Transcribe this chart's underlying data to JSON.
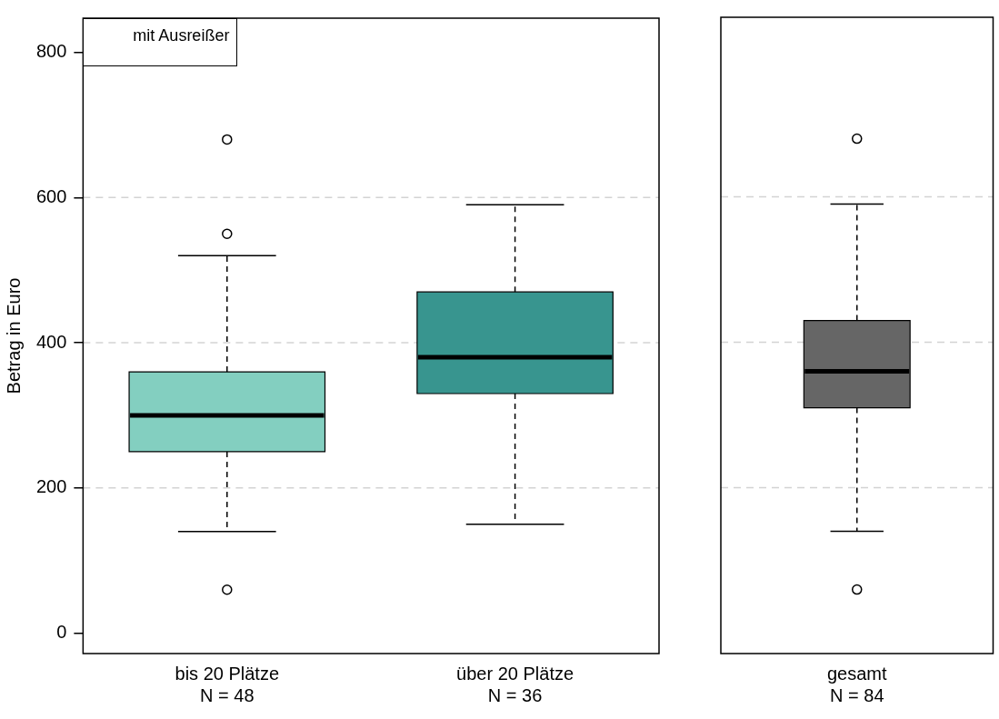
{
  "chart_data": [
    {
      "type": "box",
      "ylabel": "Betrag in Euro",
      "categories": [
        "bis 20 Plätze\nN = 48",
        "über 20 Plätze\nN = 36"
      ],
      "colors": [
        "#83cfc0",
        "#38958f"
      ],
      "boxes": [
        {
          "low": 140,
          "q1": 250,
          "median": 300,
          "q3": 360,
          "high": 520,
          "outliers": [
            680,
            550,
            60
          ]
        },
        {
          "low": 150,
          "q1": 330,
          "median": 380,
          "q3": 470,
          "high": 590
        }
      ],
      "ylim": [
        -28,
        847
      ],
      "yticks": [
        0,
        200,
        400,
        600,
        800
      ],
      "ref_lines": [
        {
          "axis": "y",
          "value": 200,
          "color": "#d3d3d3",
          "line_style": "dashed"
        },
        {
          "axis": "y",
          "value": 400,
          "color": "#d3d3d3",
          "line_style": "dashed"
        },
        {
          "axis": "y",
          "value": 600,
          "color": "#d3d3d3",
          "line_style": "dashed"
        }
      ],
      "annotations": [
        "mit Ausreißer"
      ]
    },
    {
      "type": "box",
      "categories": [
        "gesamt\nN = 84"
      ],
      "colors": [
        "#666666"
      ],
      "boxes": [
        {
          "low": 140,
          "q1": 310,
          "median": 360,
          "q3": 430,
          "high": 590,
          "outliers": [
            680,
            60
          ]
        }
      ],
      "ylim": [
        -28,
        847
      ],
      "yticks": [
        0,
        200,
        400,
        600,
        800
      ],
      "tick_labels": "x",
      "ref_lines": [
        {
          "axis": "y",
          "value": 200,
          "color": "#d3d3d3",
          "line_style": "dashed"
        },
        {
          "axis": "y",
          "value": 400,
          "color": "#d3d3d3",
          "line_style": "dashed"
        },
        {
          "axis": "y",
          "value": 600,
          "color": "#d3d3d3",
          "line_style": "dashed"
        }
      ]
    }
  ]
}
